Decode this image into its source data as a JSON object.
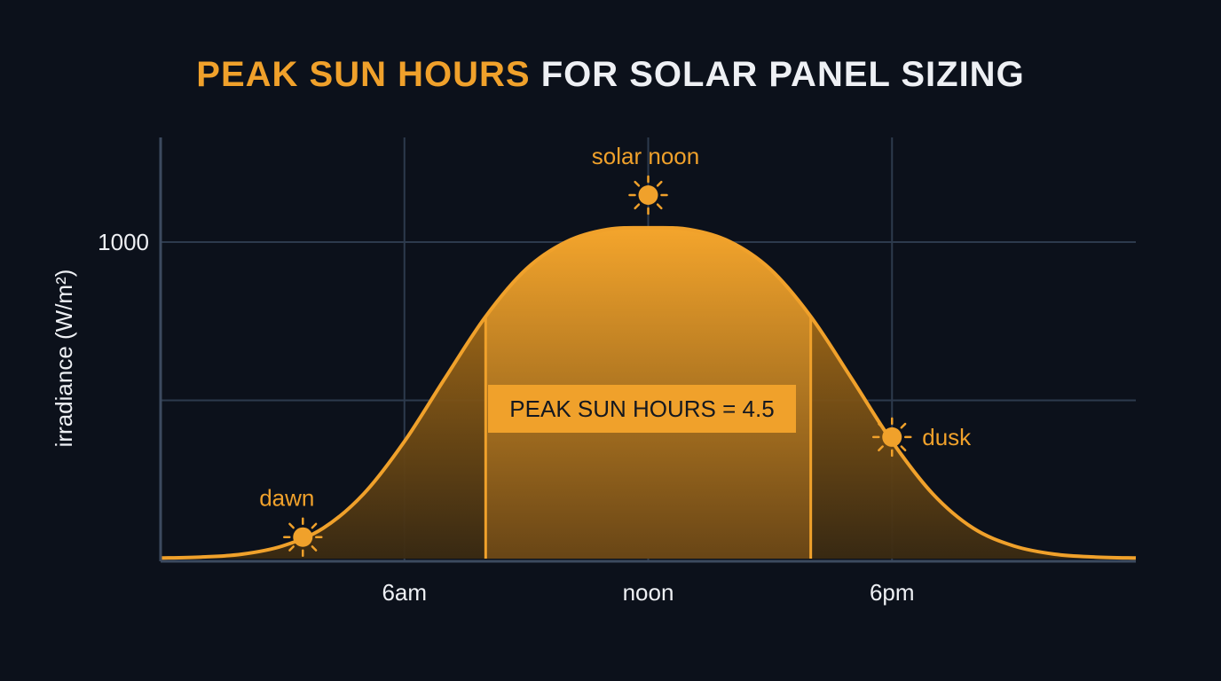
{
  "title": {
    "highlight": "PEAK SUN HOURS",
    "rest": "FOR SOLAR PANEL SIZING"
  },
  "colors": {
    "accent": "#f0a12b",
    "background": "#0c111b",
    "grid": "#2d3a4d",
    "text": "#eef0f4"
  },
  "icons": [
    "sun-icon"
  ],
  "chart_data": {
    "type": "area",
    "ylabel": "irradiance (W/m²)",
    "xlabel": "",
    "xlim": [
      0,
      24
    ],
    "ylim": [
      0,
      1000
    ],
    "x_ticks": [
      {
        "value": 6,
        "label": "6am"
      },
      {
        "value": 12,
        "label": "noon"
      },
      {
        "value": 18,
        "label": "6pm"
      }
    ],
    "y_ticks": [
      {
        "value": 1000,
        "label": "1000"
      },
      {
        "value": 500,
        "label": ""
      }
    ],
    "grid": true,
    "series": [
      {
        "x": [
          0,
          1,
          2,
          3,
          4,
          5,
          6,
          7,
          8,
          9,
          10,
          11,
          12,
          13,
          14,
          15,
          16,
          17,
          18,
          19,
          20,
          21,
          22,
          23,
          24
        ],
        "y": [
          2,
          5,
          14,
          40,
          96,
          205,
          370,
          570,
          765,
          915,
          1002,
          1040,
          1045,
          1040,
          1002,
          915,
          765,
          570,
          370,
          205,
          96,
          40,
          14,
          5,
          2
        ]
      }
    ],
    "peak_window": [
      8,
      16
    ],
    "annotations": [
      {
        "id": "dawn",
        "label": "dawn",
        "x": 3.5
      },
      {
        "id": "noon",
        "label": "solar noon",
        "x": 12
      },
      {
        "id": "dusk",
        "label": "dusk",
        "x": 18
      }
    ],
    "callout": "PEAK SUN HOURS = 4.5"
  }
}
